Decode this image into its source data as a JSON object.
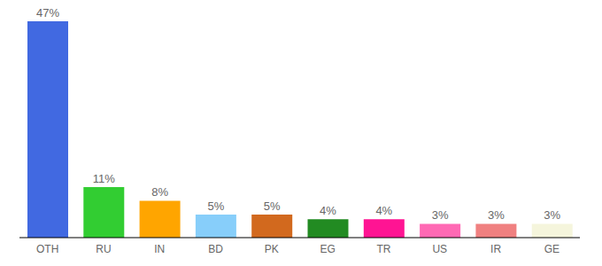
{
  "chart_data": {
    "type": "bar",
    "categories": [
      "OTH",
      "RU",
      "IN",
      "BD",
      "PK",
      "EG",
      "TR",
      "US",
      "IR",
      "GE"
    ],
    "values": [
      47,
      11,
      8,
      5,
      5,
      4,
      4,
      3,
      3,
      3
    ],
    "value_labels": [
      "47%",
      "11%",
      "8%",
      "5%",
      "5%",
      "4%",
      "4%",
      "3%",
      "3%",
      "3%"
    ],
    "colors": [
      "#4169e1",
      "#32cd32",
      "#ffa500",
      "#87cefa",
      "#d2691e",
      "#228b22",
      "#ff1493",
      "#ff69b4",
      "#f08080",
      "#f5f5dc"
    ],
    "data_labels": true,
    "tick_labels": "x",
    "grid": false
  }
}
